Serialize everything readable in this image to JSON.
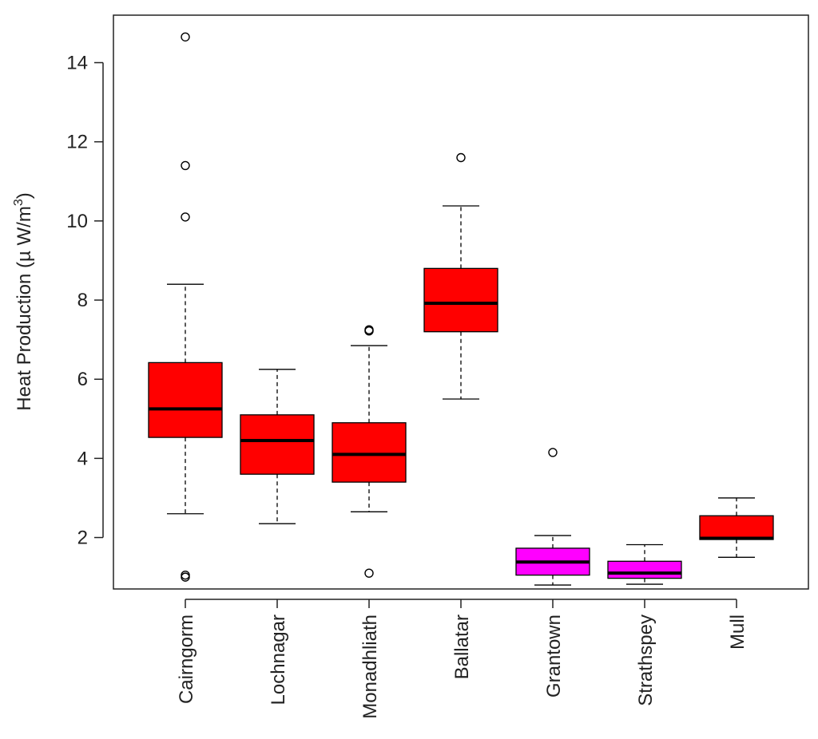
{
  "chart_data": {
    "type": "boxplot",
    "title": "",
    "xlabel": "",
    "ylabel": "Heat Production (µ W/m",
    "ylabel_superscript": "3",
    "ylabel_close": ")",
    "ylim": [
      0.7,
      15.2
    ],
    "yticks": [
      2,
      4,
      6,
      8,
      10,
      12,
      14
    ],
    "ytick_labels": [
      "2",
      "4",
      "6",
      "8",
      "10",
      "12",
      "14"
    ],
    "colors": {
      "red": "#ff0000",
      "magenta": "#ff00ff",
      "median": "#000000"
    },
    "groups": [
      {
        "name": "Cairngorm",
        "color": "#ff0000",
        "whisker_low": 2.6,
        "q1": 4.53,
        "median": 5.25,
        "q3": 6.42,
        "whisker_high": 8.4,
        "outliers": [
          14.65,
          11.4,
          10.1,
          1.05,
          1.0
        ]
      },
      {
        "name": "Lochnagar",
        "color": "#ff0000",
        "whisker_low": 2.35,
        "q1": 3.6,
        "median": 4.45,
        "q3": 5.1,
        "whisker_high": 6.25,
        "outliers": []
      },
      {
        "name": "Monadhliath",
        "color": "#ff0000",
        "whisker_low": 2.65,
        "q1": 3.4,
        "median": 4.1,
        "q3": 4.9,
        "whisker_high": 6.85,
        "outliers": [
          7.25,
          7.22,
          1.1
        ]
      },
      {
        "name": "Ballatar",
        "color": "#ff0000",
        "whisker_low": 5.5,
        "q1": 7.2,
        "median": 7.92,
        "q3": 8.8,
        "whisker_high": 10.38,
        "outliers": [
          11.6
        ]
      },
      {
        "name": "Grantown",
        "color": "#ff00ff",
        "whisker_low": 0.8,
        "q1": 1.05,
        "median": 1.38,
        "q3": 1.73,
        "whisker_high": 2.05,
        "outliers": [
          4.15
        ]
      },
      {
        "name": "Strathspey",
        "color": "#ff00ff",
        "whisker_low": 0.82,
        "q1": 0.97,
        "median": 1.1,
        "q3": 1.4,
        "whisker_high": 1.82,
        "outliers": []
      },
      {
        "name": "Mull",
        "color": "#ff0000",
        "whisker_low": 1.5,
        "q1": 1.95,
        "median": 1.98,
        "q3": 2.55,
        "whisker_high": 3.0,
        "outliers": []
      }
    ]
  }
}
